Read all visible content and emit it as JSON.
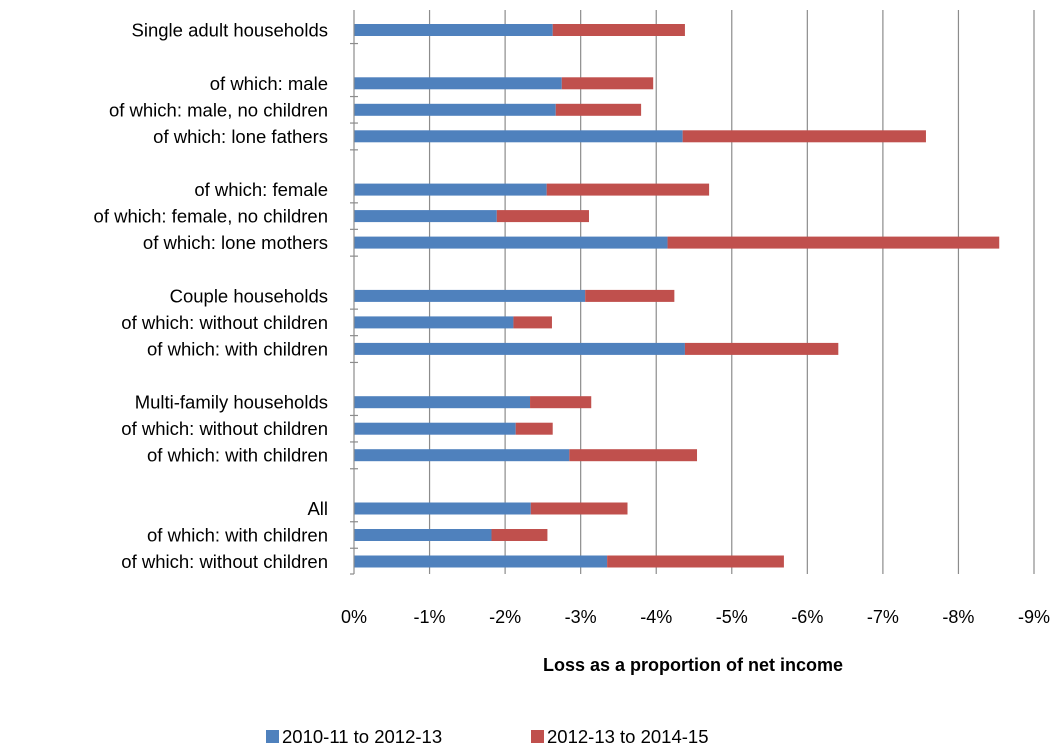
{
  "chart_data": {
    "type": "bar",
    "orientation": "horizontal",
    "stacked": true,
    "title": "",
    "xlabel": "Loss as a proportion of net income",
    "ylabel": "",
    "xlim": [
      0,
      -9
    ],
    "x_ticks": [
      0,
      -1,
      -2,
      -3,
      -4,
      -5,
      -6,
      -7,
      -8,
      -9
    ],
    "x_tick_labels": [
      "0%",
      "-1%",
      "-2%",
      "-3%",
      "-4%",
      "-5%",
      "-6%",
      "-7%",
      "-8%",
      "-9%"
    ],
    "grid": "vertical",
    "legend_position": "bottom",
    "categories": [
      "Single adult households",
      "of which: male",
      "of which: male, no children",
      "of which: lone fathers",
      "of which: female",
      "of which: female, no children",
      "of which: lone mothers",
      "Couple households",
      "of which: without children",
      "of which: with children",
      "Multi-family households",
      "of which: without children",
      "of which: with children",
      "All",
      "of which: with children",
      "of which: without children"
    ],
    "group_starts": [
      0,
      1,
      4,
      7,
      10,
      13
    ],
    "series": [
      {
        "name": "2010-11 to 2012-13",
        "color": "#4f81bd",
        "values": [
          -2.63,
          -2.75,
          -2.67,
          -4.35,
          -2.55,
          -1.89,
          -4.15,
          -3.06,
          -2.11,
          -4.38,
          -2.33,
          -2.14,
          -2.85,
          -2.34,
          -1.82,
          -3.35
        ]
      },
      {
        "name": "2012-13 to 2014-15",
        "color": "#c0504d",
        "values": [
          -1.75,
          -1.21,
          -1.13,
          -3.22,
          -2.15,
          -1.22,
          -4.39,
          -1.18,
          -0.51,
          -2.03,
          -0.81,
          -0.49,
          -1.69,
          -1.28,
          -0.74,
          -2.34
        ]
      }
    ]
  }
}
